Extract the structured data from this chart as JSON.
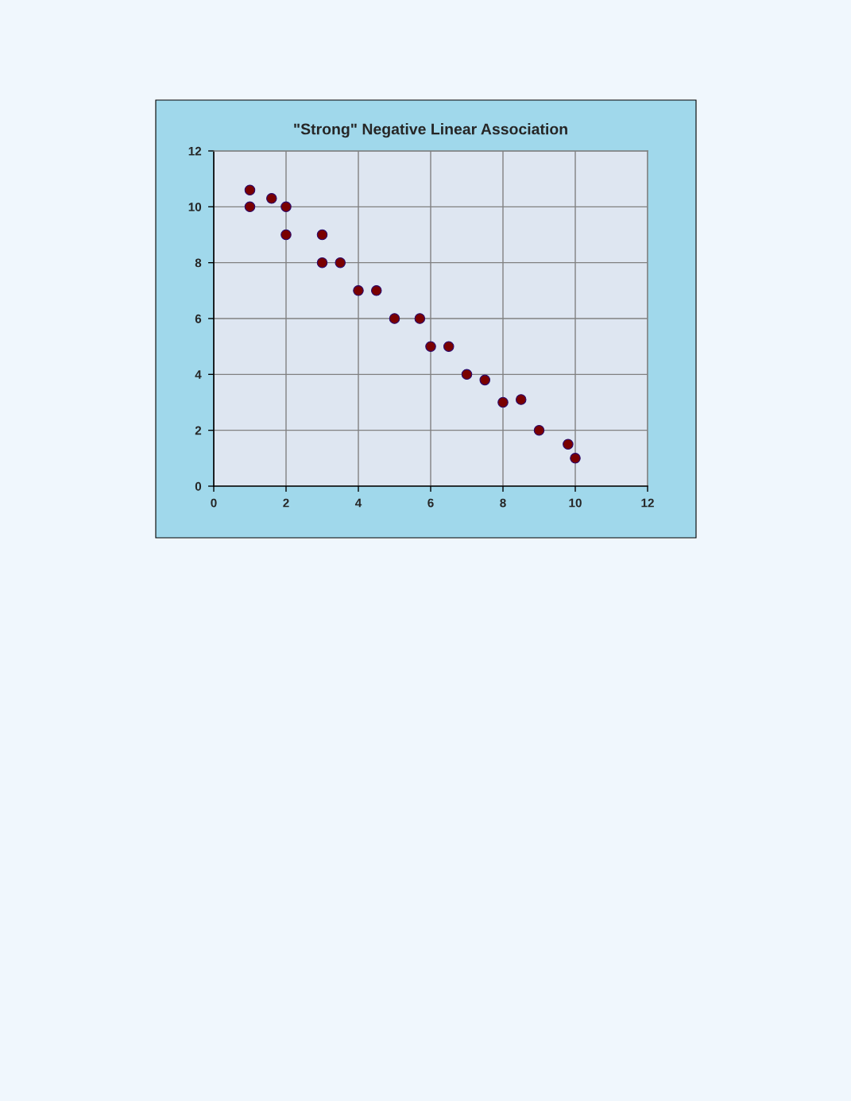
{
  "chart_data": {
    "type": "scatter",
    "title": "\"Strong\" Negative Linear Association",
    "x": [
      1,
      1,
      1.6,
      2,
      2,
      3,
      3,
      3.5,
      4,
      4.5,
      5,
      5.7,
      6,
      6.5,
      7,
      7.5,
      8,
      8.5,
      9,
      9.8,
      10
    ],
    "series": [
      {
        "color": "#7a0000",
        "values": [
          10.6,
          10,
          10.3,
          10,
          9,
          9,
          8,
          8,
          7,
          7,
          6,
          6,
          5,
          5,
          4,
          3.8,
          3,
          3.1,
          2,
          1.5,
          1
        ]
      }
    ],
    "xlim": [
      0,
      12
    ],
    "ylim": [
      0,
      12
    ],
    "xticks": [
      0,
      2,
      4,
      6,
      8,
      10,
      12
    ],
    "yticks": [
      0,
      2,
      4,
      6,
      8,
      10,
      12
    ],
    "grid": true,
    "marker": "circle"
  }
}
